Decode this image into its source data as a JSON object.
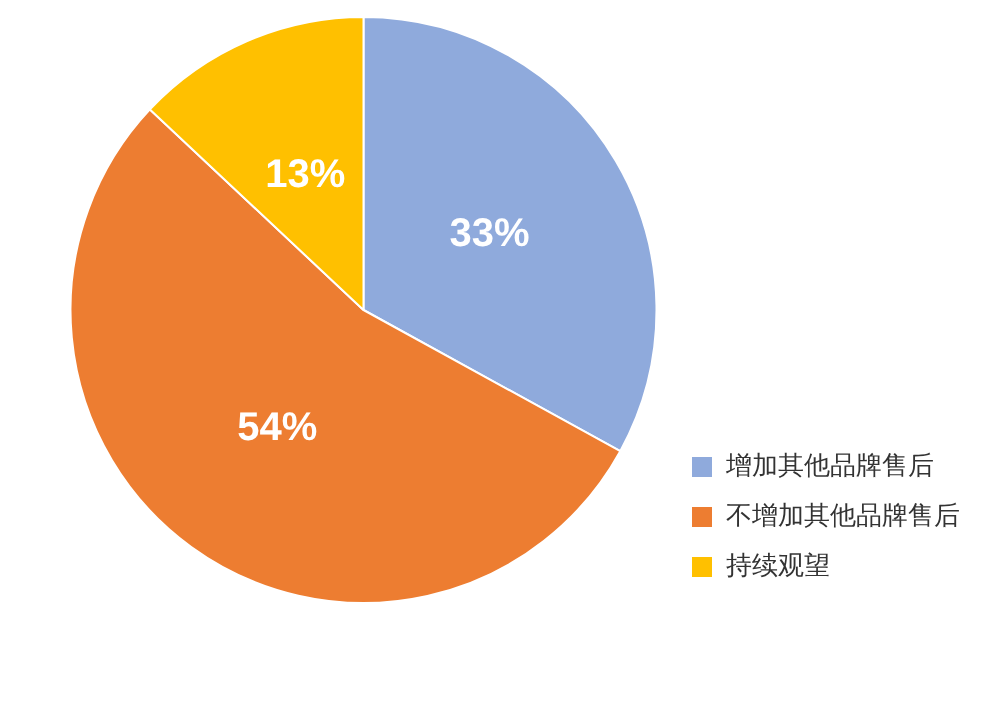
{
  "chart_data": {
    "type": "pie",
    "categories": [
      "增加其他品牌售后",
      "不增加其他品牌售后",
      "持续观望"
    ],
    "values": [
      33,
      54,
      13
    ],
    "colors": [
      "#8faadc",
      "#ed7d31",
      "#ffc000"
    ],
    "value_labels": [
      "33%",
      "54%",
      "13%"
    ],
    "legend": "bottom right"
  }
}
